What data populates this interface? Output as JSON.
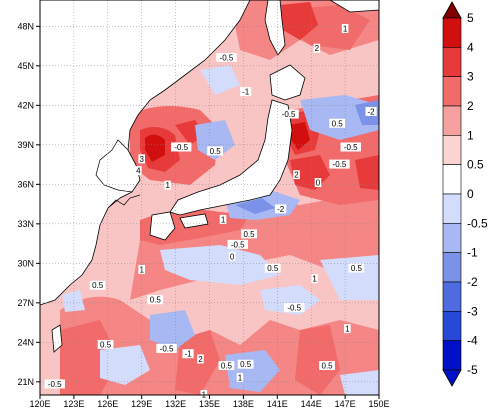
{
  "map": {
    "lon_ticks": [
      "120E",
      "123E",
      "126E",
      "129E",
      "132E",
      "135E",
      "138E",
      "141E",
      "144E",
      "147E",
      "150E"
    ],
    "lat_ticks": [
      "21N",
      "24N",
      "27N",
      "30N",
      "33N",
      "36N",
      "39N",
      "42N",
      "45N",
      "48N"
    ],
    "lon_range": [
      120,
      150
    ],
    "lat_range": [
      20,
      50
    ],
    "land_color": "#ffffff",
    "gridlines": true,
    "contour_labels": [
      {
        "text": "-0.5",
        "lon": 136.5,
        "lat": 45.6
      },
      {
        "text": "2",
        "lon": 144.5,
        "lat": 46.3
      },
      {
        "text": "1",
        "lon": 147.0,
        "lat": 47.8
      },
      {
        "text": "-0.5",
        "lon": 142.0,
        "lat": 41.3
      },
      {
        "text": "-1",
        "lon": 138.2,
        "lat": 43.0
      },
      {
        "text": "0.5",
        "lon": 146.3,
        "lat": 40.6
      },
      {
        "text": "-0.5",
        "lon": 147.5,
        "lat": 38.8
      },
      {
        "text": "-2",
        "lon": 149.3,
        "lat": 41.5
      },
      {
        "text": "3",
        "lon": 129.0,
        "lat": 37.9
      },
      {
        "text": "4",
        "lon": 128.7,
        "lat": 37.0
      },
      {
        "text": "-0.5",
        "lon": 132.5,
        "lat": 38.8
      },
      {
        "text": "0.5",
        "lon": 135.5,
        "lat": 38.5
      },
      {
        "text": "1",
        "lon": 131.3,
        "lat": 35.9
      },
      {
        "text": "2",
        "lon": 142.7,
        "lat": 36.7
      },
      {
        "text": "0",
        "lon": 144.6,
        "lat": 36.1
      },
      {
        "text": "-0.5",
        "lon": 146.5,
        "lat": 37.5
      },
      {
        "text": "-2",
        "lon": 141.3,
        "lat": 34.1
      },
      {
        "text": "1",
        "lon": 136.2,
        "lat": 33.3
      },
      {
        "text": "0.5",
        "lon": 138.5,
        "lat": 32.2
      },
      {
        "text": "-0.5",
        "lon": 137.5,
        "lat": 31.4
      },
      {
        "text": "1",
        "lon": 129.0,
        "lat": 29.5
      },
      {
        "text": "0.5",
        "lon": 130.2,
        "lat": 27.2
      },
      {
        "text": "0.5",
        "lon": 125.1,
        "lat": 28.3
      },
      {
        "text": "0.5",
        "lon": 140.6,
        "lat": 29.6
      },
      {
        "text": "0",
        "lon": 137.0,
        "lat": 30.5
      },
      {
        "text": "1",
        "lon": 144.3,
        "lat": 28.8
      },
      {
        "text": "0.5",
        "lon": 148.0,
        "lat": 29.6
      },
      {
        "text": "-0.5",
        "lon": 142.5,
        "lat": 26.6
      },
      {
        "text": "1",
        "lon": 147.2,
        "lat": 25.0
      },
      {
        "text": "0.5",
        "lon": 125.8,
        "lat": 23.8
      },
      {
        "text": "-0.5",
        "lon": 131.2,
        "lat": 23.5
      },
      {
        "text": "-1",
        "lon": 133.1,
        "lat": 23.1
      },
      {
        "text": "2",
        "lon": 134.2,
        "lat": 22.7
      },
      {
        "text": "0.5",
        "lon": 136.5,
        "lat": 22.2
      },
      {
        "text": "0.5",
        "lon": 138.2,
        "lat": 22.3
      },
      {
        "text": "1",
        "lon": 137.7,
        "lat": 21.3
      },
      {
        "text": "0.5",
        "lon": 145.4,
        "lat": 22.2
      },
      {
        "text": "-0.5",
        "lon": 121.3,
        "lat": 20.8
      },
      {
        "text": "1",
        "lon": 134.5,
        "lat": 20.0
      }
    ]
  },
  "colorbar": {
    "labels": [
      "5",
      "4",
      "3",
      "2",
      "1",
      "0.5",
      "0",
      "-0.5",
      "-1",
      "-2",
      "-3",
      "-4",
      "-5"
    ],
    "colors": [
      "#800000",
      "#d10f0f",
      "#e73a3a",
      "#f26b6b",
      "#f7a0a0",
      "#fbd3d3",
      "#ffffff",
      "#d3dcfa",
      "#a8b8f2",
      "#7b92e8",
      "#4f6be0",
      "#2848d8",
      "#0010c8"
    ]
  }
}
